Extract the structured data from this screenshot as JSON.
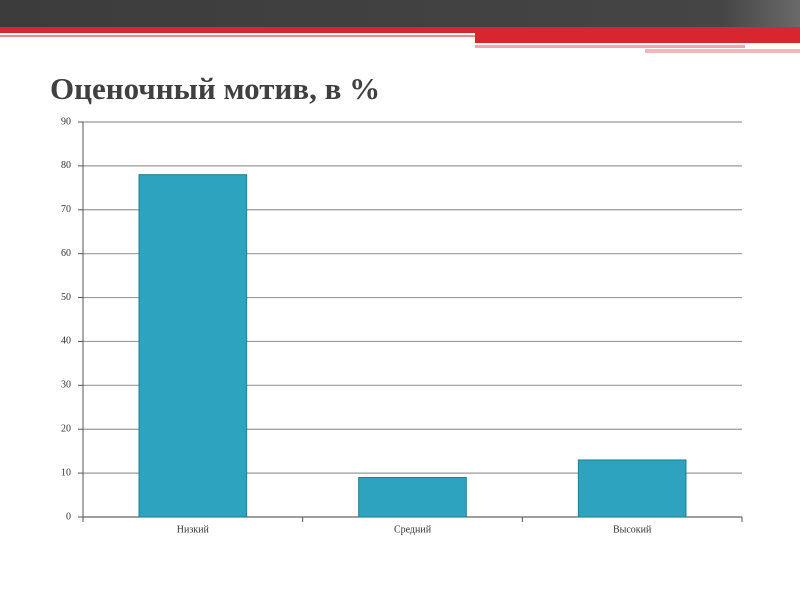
{
  "chart_data": {
    "type": "bar",
    "title": "Оценочный мотив, в %",
    "categories": [
      "Низкий",
      "Средний",
      "Высокий"
    ],
    "values": [
      78,
      9,
      13
    ],
    "color": "#2ea3c0",
    "ylim": [
      0,
      90
    ],
    "yticks": [
      0,
      10,
      20,
      30,
      40,
      50,
      60,
      70,
      80,
      90
    ],
    "grid": true
  }
}
